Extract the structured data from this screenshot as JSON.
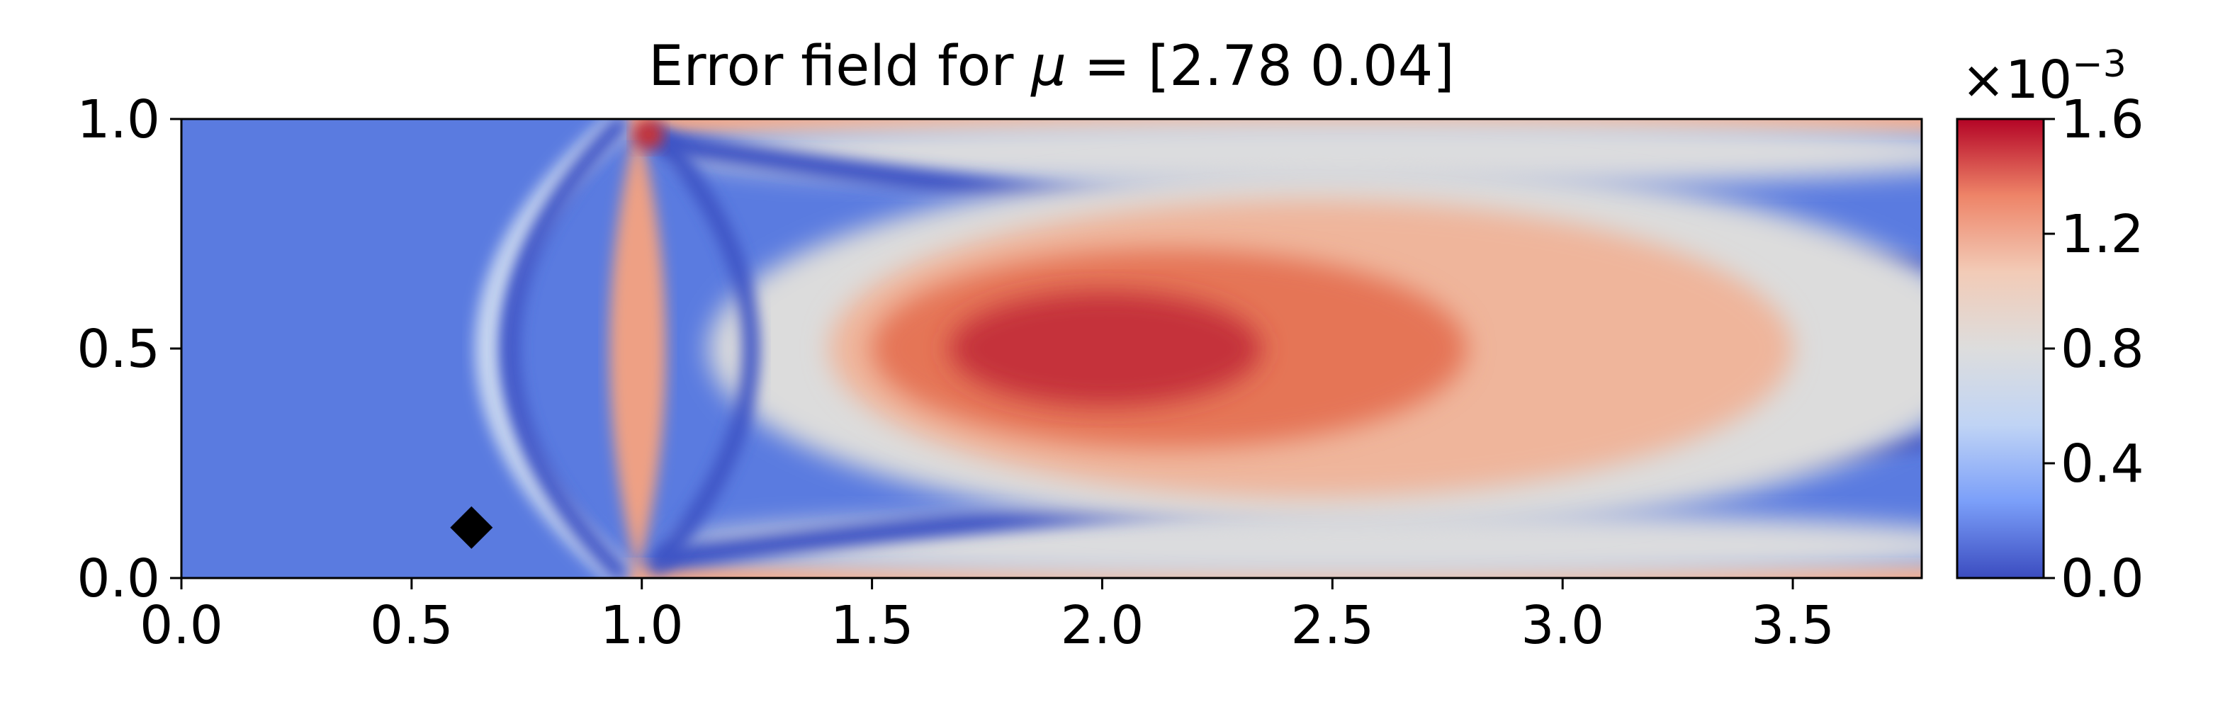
{
  "chart_data": [
    {
      "type": "heatmap",
      "title_prefix": "Error field for ",
      "title_symbol": "μ",
      "title_suffix": " = [2.78 0.04]",
      "xlim": [
        0,
        3.78
      ],
      "ylim": [
        0,
        1
      ],
      "xticks": [
        0.0,
        0.5,
        1.0,
        1.5,
        2.0,
        2.5,
        3.0,
        3.5
      ],
      "xtick_labels": [
        "0.0",
        "0.5",
        "1.0",
        "1.5",
        "2.0",
        "2.5",
        "3.0",
        "3.5"
      ],
      "yticks": [
        0.0,
        0.5,
        1.0
      ],
      "ytick_labels": [
        "0.0",
        "0.5",
        "1.0"
      ],
      "colormap": "coolwarm",
      "colormap_stops": [
        "#3b4cc0",
        "#7b9ff9",
        "#c0d4f5",
        "#dddddd",
        "#f2cbb7",
        "#ee8468",
        "#b40426"
      ],
      "features": [
        {
          "name": "central-hotspot",
          "center": [
            2.0,
            0.5
          ],
          "level": 1.5
        },
        {
          "name": "inlet-band",
          "x": 0.98,
          "level": 1.0
        },
        {
          "name": "top-wall-band",
          "y": 0.99,
          "level": 0.95
        },
        {
          "name": "bottom-wall-band",
          "y": 0.01,
          "level": 0.95
        },
        {
          "name": "low-error-region",
          "x_range": [
            0.0,
            0.85
          ],
          "level": 0.1
        }
      ],
      "marker": {
        "symbol": "diamond",
        "x": 0.63,
        "y": 0.11,
        "color": "#000000"
      },
      "grid": false
    },
    {
      "type": "colorbar",
      "scale_base": "×10",
      "scale_exponent": "−3",
      "range": [
        0,
        1.6
      ],
      "ticks": [
        0.0,
        0.4,
        0.8,
        1.2,
        1.6
      ],
      "tick_labels": [
        "0.0",
        "0.4",
        "0.8",
        "1.2",
        "1.6"
      ]
    }
  ]
}
